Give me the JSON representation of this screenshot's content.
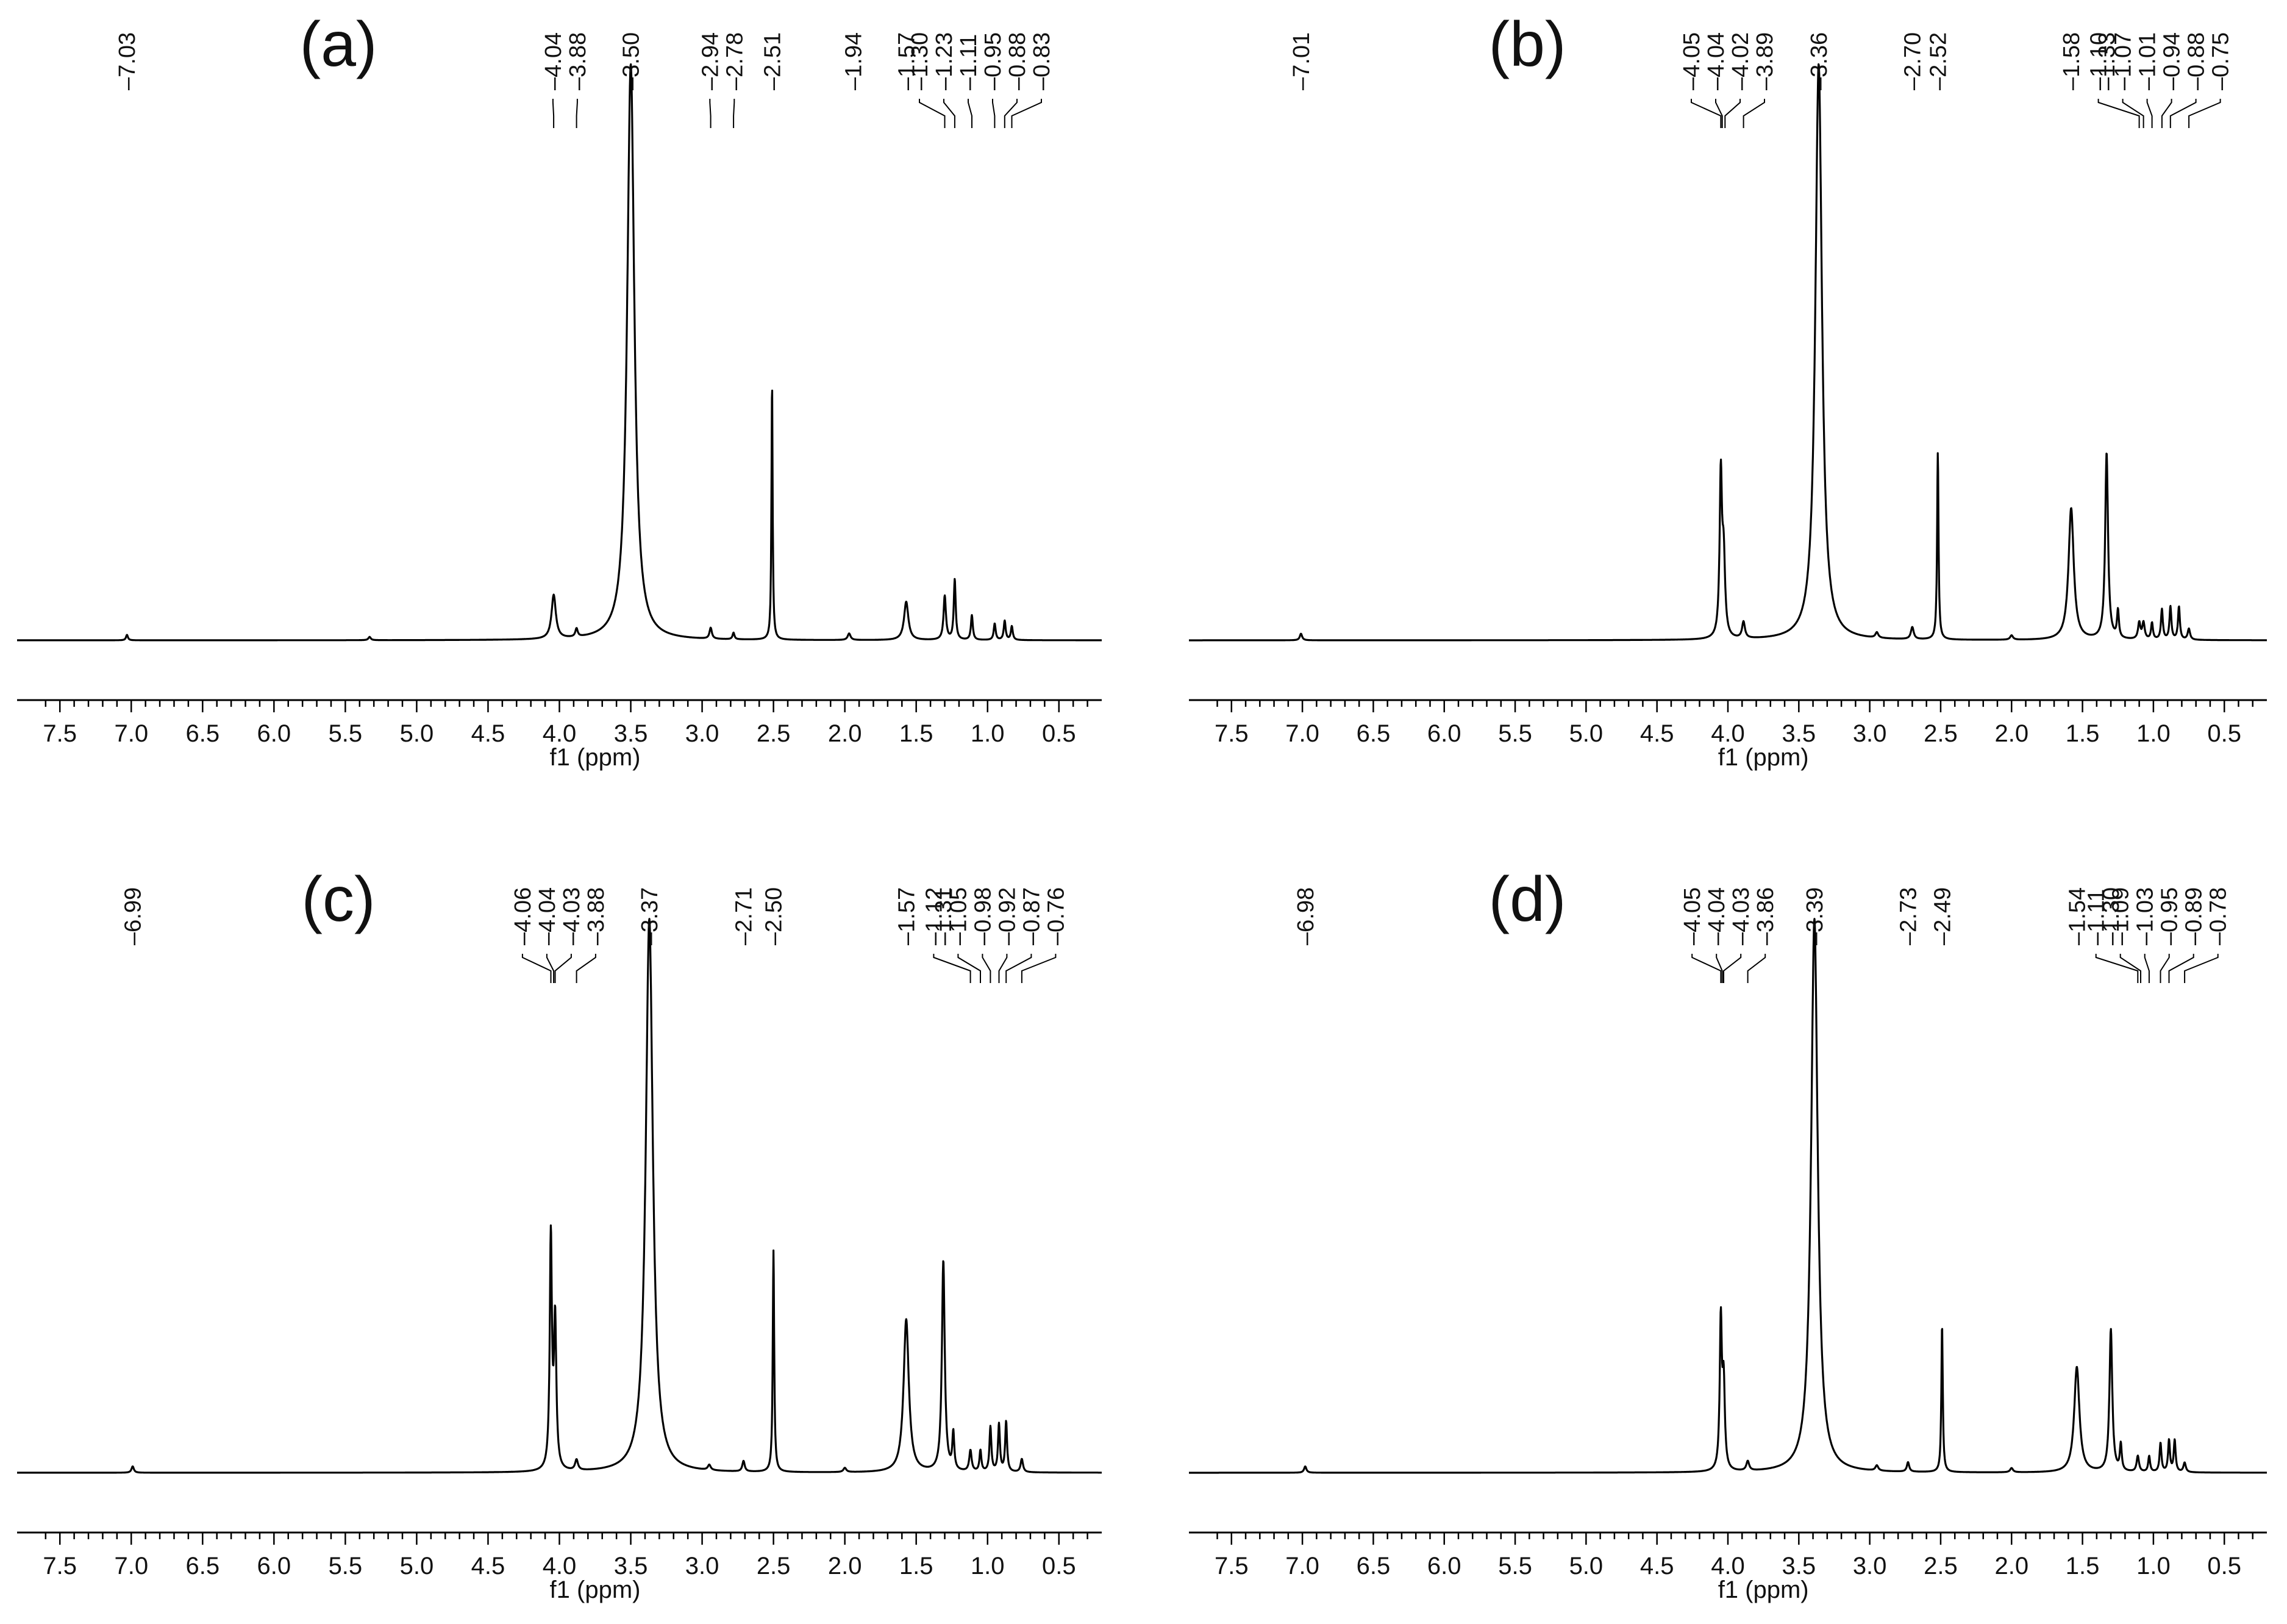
{
  "chart_data": [
    {
      "panel": "(a)",
      "type": "line",
      "xlabel": "f1 (ppm)",
      "x_reversed": true,
      "xlim": [
        7.8,
        0.2
      ],
      "ylim": [
        0,
        1
      ],
      "ticks": [
        "7.5",
        "7.0",
        "6.5",
        "6.0",
        "5.5",
        "5.0",
        "4.5",
        "4.0",
        "3.5",
        "3.0",
        "2.5",
        "2.0",
        "1.5",
        "1.0",
        "0.5"
      ],
      "peak_labels": [
        "7.03",
        "4.04",
        "3.88",
        "3.50",
        "2.94",
        "2.78",
        "2.51",
        "1.94",
        "1.57",
        "1.30",
        "1.23",
        "1.11",
        "0.95",
        "0.88",
        "0.83"
      ],
      "peaks": [
        {
          "x": 7.03,
          "h": 0.01,
          "w": 0.008
        },
        {
          "x": 5.33,
          "h": 0.006,
          "w": 0.01
        },
        {
          "x": 4.04,
          "h": 0.08,
          "w": 0.018
        },
        {
          "x": 3.88,
          "h": 0.015,
          "w": 0.01
        },
        {
          "x": 3.5,
          "h": 1.05,
          "w": 0.03
        },
        {
          "x": 2.94,
          "h": 0.02,
          "w": 0.01
        },
        {
          "x": 2.78,
          "h": 0.012,
          "w": 0.008
        },
        {
          "x": 2.51,
          "h": 0.47,
          "w": 0.005
        },
        {
          "x": 1.97,
          "h": 0.012,
          "w": 0.012
        },
        {
          "x": 1.57,
          "h": 0.07,
          "w": 0.018
        },
        {
          "x": 1.3,
          "h": 0.08,
          "w": 0.01
        },
        {
          "x": 1.23,
          "h": 0.11,
          "w": 0.008
        },
        {
          "x": 1.11,
          "h": 0.045,
          "w": 0.008
        },
        {
          "x": 0.95,
          "h": 0.03,
          "w": 0.008
        },
        {
          "x": 0.88,
          "h": 0.035,
          "w": 0.008
        },
        {
          "x": 0.83,
          "h": 0.025,
          "w": 0.008
        }
      ]
    },
    {
      "panel": "(b)",
      "type": "line",
      "xlabel": "f1 (ppm)",
      "x_reversed": true,
      "xlim": [
        7.8,
        0.2
      ],
      "ylim": [
        0,
        1
      ],
      "ticks": [
        "7.5",
        "7.0",
        "6.5",
        "6.0",
        "5.5",
        "5.0",
        "4.5",
        "4.0",
        "3.5",
        "3.0",
        "2.5",
        "2.0",
        "1.5",
        "1.0",
        "0.5"
      ],
      "peak_labels": [
        "7.01",
        "4.05",
        "4.04",
        "4.02",
        "3.89",
        "3.36",
        "2.70",
        "2.52",
        "1.58",
        "1.33",
        "1.10",
        "1.07",
        "1.01",
        "0.94",
        "0.88",
        "0.75"
      ],
      "peaks": [
        {
          "x": 7.01,
          "h": 0.012,
          "w": 0.01
        },
        {
          "x": 4.05,
          "h": 0.29,
          "w": 0.01
        },
        {
          "x": 4.03,
          "h": 0.14,
          "w": 0.012
        },
        {
          "x": 3.89,
          "h": 0.03,
          "w": 0.012
        },
        {
          "x": 3.36,
          "h": 1.05,
          "w": 0.028
        },
        {
          "x": 2.95,
          "h": 0.01,
          "w": 0.012
        },
        {
          "x": 2.7,
          "h": 0.022,
          "w": 0.012
        },
        {
          "x": 2.52,
          "h": 0.34,
          "w": 0.006
        },
        {
          "x": 2.0,
          "h": 0.008,
          "w": 0.012
        },
        {
          "x": 1.58,
          "h": 0.24,
          "w": 0.022
        },
        {
          "x": 1.33,
          "h": 0.34,
          "w": 0.012
        },
        {
          "x": 1.25,
          "h": 0.05,
          "w": 0.008
        },
        {
          "x": 1.1,
          "h": 0.03,
          "w": 0.01
        },
        {
          "x": 1.07,
          "h": 0.03,
          "w": 0.01
        },
        {
          "x": 1.01,
          "h": 0.03,
          "w": 0.008
        },
        {
          "x": 0.94,
          "h": 0.055,
          "w": 0.008
        },
        {
          "x": 0.88,
          "h": 0.06,
          "w": 0.008
        },
        {
          "x": 0.82,
          "h": 0.06,
          "w": 0.008
        },
        {
          "x": 0.75,
          "h": 0.02,
          "w": 0.01
        }
      ]
    },
    {
      "panel": "(c)",
      "type": "line",
      "xlabel": "f1 (ppm)",
      "x_reversed": true,
      "xlim": [
        7.8,
        0.2
      ],
      "ylim": [
        0,
        1
      ],
      "ticks": [
        "7.5",
        "7.0",
        "6.5",
        "6.0",
        "5.5",
        "5.0",
        "4.5",
        "4.0",
        "3.5",
        "3.0",
        "2.5",
        "2.0",
        "1.5",
        "1.0",
        "0.5"
      ],
      "peak_labels": [
        "6.99",
        "4.06",
        "4.04",
        "4.03",
        "3.88",
        "3.37",
        "2.71",
        "2.50",
        "1.57",
        "1.31",
        "1.12",
        "1.05",
        "0.98",
        "0.92",
        "0.87",
        "0.76"
      ],
      "peaks": [
        {
          "x": 6.99,
          "h": 0.012,
          "w": 0.01
        },
        {
          "x": 4.06,
          "h": 0.44,
          "w": 0.009
        },
        {
          "x": 4.03,
          "h": 0.28,
          "w": 0.01
        },
        {
          "x": 3.88,
          "h": 0.02,
          "w": 0.012
        },
        {
          "x": 3.37,
          "h": 1.05,
          "w": 0.03
        },
        {
          "x": 2.95,
          "h": 0.01,
          "w": 0.012
        },
        {
          "x": 2.71,
          "h": 0.02,
          "w": 0.01
        },
        {
          "x": 2.5,
          "h": 0.42,
          "w": 0.006
        },
        {
          "x": 2.0,
          "h": 0.008,
          "w": 0.012
        },
        {
          "x": 1.57,
          "h": 0.29,
          "w": 0.022
        },
        {
          "x": 1.31,
          "h": 0.4,
          "w": 0.012
        },
        {
          "x": 1.24,
          "h": 0.07,
          "w": 0.008
        },
        {
          "x": 1.12,
          "h": 0.04,
          "w": 0.01
        },
        {
          "x": 1.05,
          "h": 0.04,
          "w": 0.008
        },
        {
          "x": 0.98,
          "h": 0.085,
          "w": 0.008
        },
        {
          "x": 0.92,
          "h": 0.09,
          "w": 0.008
        },
        {
          "x": 0.87,
          "h": 0.095,
          "w": 0.008
        },
        {
          "x": 0.76,
          "h": 0.025,
          "w": 0.01
        }
      ]
    },
    {
      "panel": "(d)",
      "type": "line",
      "xlabel": "f1 (ppm)",
      "x_reversed": true,
      "xlim": [
        7.8,
        0.2
      ],
      "ylim": [
        0,
        1
      ],
      "ticks": [
        "7.5",
        "7.0",
        "6.5",
        "6.0",
        "5.5",
        "5.0",
        "4.5",
        "4.0",
        "3.5",
        "3.0",
        "2.5",
        "2.0",
        "1.5",
        "1.0",
        "0.5"
      ],
      "peak_labels": [
        "6.98",
        "4.05",
        "4.04",
        "4.03",
        "3.86",
        "3.39",
        "2.73",
        "2.49",
        "1.54",
        "1.30",
        "1.11",
        "1.09",
        "1.03",
        "0.95",
        "0.89",
        "0.78"
      ],
      "peaks": [
        {
          "x": 6.98,
          "h": 0.012,
          "w": 0.01
        },
        {
          "x": 4.05,
          "h": 0.28,
          "w": 0.009
        },
        {
          "x": 4.03,
          "h": 0.16,
          "w": 0.01
        },
        {
          "x": 3.86,
          "h": 0.018,
          "w": 0.012
        },
        {
          "x": 3.39,
          "h": 1.05,
          "w": 0.028
        },
        {
          "x": 2.95,
          "h": 0.01,
          "w": 0.012
        },
        {
          "x": 2.73,
          "h": 0.018,
          "w": 0.01
        },
        {
          "x": 2.49,
          "h": 0.28,
          "w": 0.006
        },
        {
          "x": 2.0,
          "h": 0.008,
          "w": 0.012
        },
        {
          "x": 1.54,
          "h": 0.2,
          "w": 0.022
        },
        {
          "x": 1.3,
          "h": 0.27,
          "w": 0.012
        },
        {
          "x": 1.23,
          "h": 0.05,
          "w": 0.008
        },
        {
          "x": 1.11,
          "h": 0.03,
          "w": 0.01
        },
        {
          "x": 1.03,
          "h": 0.03,
          "w": 0.008
        },
        {
          "x": 0.95,
          "h": 0.055,
          "w": 0.008
        },
        {
          "x": 0.89,
          "h": 0.06,
          "w": 0.008
        },
        {
          "x": 0.85,
          "h": 0.06,
          "w": 0.008
        },
        {
          "x": 0.78,
          "h": 0.018,
          "w": 0.01
        }
      ]
    }
  ]
}
